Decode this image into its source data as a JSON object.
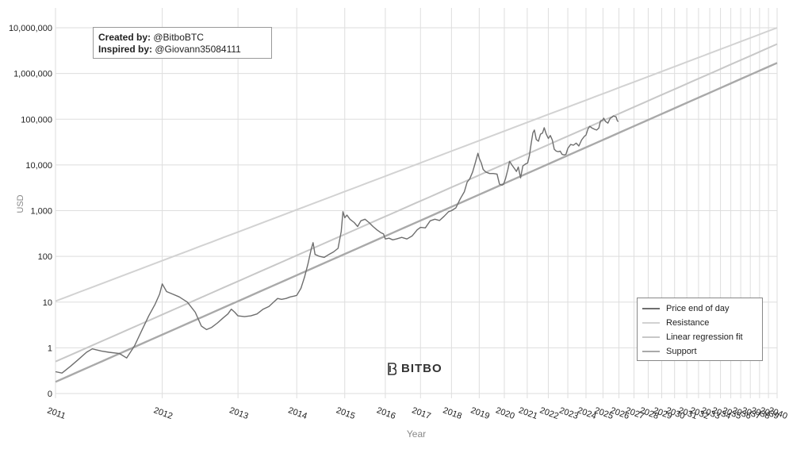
{
  "credit": {
    "created_label": "Created by:",
    "created_value": "@BitboBTC",
    "inspired_label": "Inspired by:",
    "inspired_value": "@Giovann35084111"
  },
  "brand": {
    "name": "BITBO",
    "icon": "bitbo-logo-icon"
  },
  "colors": {
    "price": "#6e6e6e",
    "resistance": "#d2d2d2",
    "regression": "#c8c8c8",
    "support": "#a9a9a9",
    "grid": "#dedede"
  },
  "chart_data": {
    "type": "line",
    "title": "",
    "xlabel": "Year",
    "ylabel": "USD",
    "yscale": "log",
    "grid": true,
    "legend_position": "bottom-right",
    "y_ticks": [
      "0",
      "1",
      "10",
      "100",
      "1,000",
      "10,000",
      "100,000",
      "1,000,000",
      "10,000,000"
    ],
    "x_ticks": [
      "2011",
      "2012",
      "2013",
      "2014",
      "2015",
      "2016",
      "2017",
      "2018",
      "2019",
      "2020",
      "2021",
      "2022",
      "2023",
      "2024",
      "2025",
      "2026",
      "2027",
      "2028",
      "2029",
      "2030",
      "2031",
      "2032",
      "2033",
      "2034",
      "2035",
      "2036",
      "2037",
      "2038",
      "2039",
      "2040"
    ],
    "legend": [
      "Price end of day",
      "Resistance",
      "Linear regression fit",
      "Support"
    ],
    "series": [
      {
        "name": "Price end of day",
        "points": [
          [
            2011.0,
            0.3
          ],
          [
            2011.05,
            0.28
          ],
          [
            2011.12,
            0.4
          ],
          [
            2011.18,
            0.55
          ],
          [
            2011.25,
            0.8
          ],
          [
            2011.3,
            0.95
          ],
          [
            2011.38,
            0.85
          ],
          [
            2011.45,
            0.8
          ],
          [
            2011.55,
            0.75
          ],
          [
            2011.62,
            0.6
          ],
          [
            2011.7,
            1.1
          ],
          [
            2011.78,
            2.5
          ],
          [
            2011.85,
            5
          ],
          [
            2011.92,
            9
          ],
          [
            2011.97,
            15
          ],
          [
            2012.0,
            25
          ],
          [
            2012.05,
            17
          ],
          [
            2012.12,
            15
          ],
          [
            2012.2,
            13
          ],
          [
            2012.3,
            10
          ],
          [
            2012.4,
            6
          ],
          [
            2012.48,
            3
          ],
          [
            2012.55,
            2.5
          ],
          [
            2012.62,
            2.8
          ],
          [
            2012.7,
            3.5
          ],
          [
            2012.78,
            4.5
          ],
          [
            2012.85,
            5.5
          ],
          [
            2012.9,
            7
          ],
          [
            2012.95,
            6
          ],
          [
            2013.0,
            5
          ],
          [
            2013.1,
            4.8
          ],
          [
            2013.2,
            5
          ],
          [
            2013.3,
            5.5
          ],
          [
            2013.4,
            7
          ],
          [
            2013.5,
            8
          ],
          [
            2013.58,
            10
          ],
          [
            2013.65,
            12
          ],
          [
            2013.72,
            11.5
          ],
          [
            2013.8,
            12
          ],
          [
            2013.88,
            13
          ],
          [
            2013.95,
            13.5
          ],
          [
            2014.0,
            14
          ],
          [
            2014.08,
            20
          ],
          [
            2014.15,
            35
          ],
          [
            2014.22,
            70
          ],
          [
            2014.28,
            140
          ],
          [
            2014.32,
            200
          ],
          [
            2014.36,
            110
          ],
          [
            2014.45,
            100
          ],
          [
            2014.55,
            95
          ],
          [
            2014.65,
            110
          ],
          [
            2014.75,
            125
          ],
          [
            2014.85,
            150
          ],
          [
            2014.92,
            350
          ],
          [
            2014.96,
            950
          ],
          [
            2015.0,
            700
          ],
          [
            2015.05,
            800
          ],
          [
            2015.12,
            650
          ],
          [
            2015.22,
            550
          ],
          [
            2015.3,
            450
          ],
          [
            2015.38,
            600
          ],
          [
            2015.48,
            650
          ],
          [
            2015.58,
            550
          ],
          [
            2015.68,
            450
          ],
          [
            2015.78,
            380
          ],
          [
            2015.88,
            330
          ],
          [
            2015.95,
            310
          ],
          [
            2016.0,
            240
          ],
          [
            2016.1,
            250
          ],
          [
            2016.2,
            230
          ],
          [
            2016.3,
            240
          ],
          [
            2016.45,
            260
          ],
          [
            2016.6,
            240
          ],
          [
            2016.75,
            280
          ],
          [
            2016.9,
            380
          ],
          [
            2017.0,
            430
          ],
          [
            2017.15,
            420
          ],
          [
            2017.3,
            600
          ],
          [
            2017.45,
            650
          ],
          [
            2017.6,
            610
          ],
          [
            2017.75,
            750
          ],
          [
            2017.9,
            950
          ],
          [
            2018.0,
            1000
          ],
          [
            2018.15,
            1150
          ],
          [
            2018.3,
            1800
          ],
          [
            2018.45,
            2600
          ],
          [
            2018.55,
            4200
          ],
          [
            2018.65,
            5000
          ],
          [
            2018.75,
            7000
          ],
          [
            2018.85,
            11000
          ],
          [
            2018.95,
            18000
          ],
          [
            2019.0,
            14000
          ],
          [
            2019.08,
            11000
          ],
          [
            2019.15,
            8000
          ],
          [
            2019.25,
            7000
          ],
          [
            2019.4,
            6500
          ],
          [
            2019.55,
            6500
          ],
          [
            2019.7,
            6300
          ],
          [
            2019.8,
            3800
          ],
          [
            2019.9,
            3600
          ],
          [
            2019.97,
            3800
          ],
          [
            2020.05,
            5000
          ],
          [
            2020.15,
            8000
          ],
          [
            2020.22,
            12000
          ],
          [
            2020.32,
            10000
          ],
          [
            2020.42,
            8500
          ],
          [
            2020.52,
            7200
          ],
          [
            2020.6,
            9000
          ],
          [
            2020.7,
            5200
          ],
          [
            2020.8,
            9500
          ],
          [
            2020.92,
            10500
          ],
          [
            2021.02,
            11000
          ],
          [
            2021.1,
            16000
          ],
          [
            2021.18,
            29000
          ],
          [
            2021.26,
            50000
          ],
          [
            2021.33,
            58000
          ],
          [
            2021.42,
            36000
          ],
          [
            2021.52,
            33000
          ],
          [
            2021.62,
            47000
          ],
          [
            2021.72,
            50000
          ],
          [
            2021.8,
            65000
          ],
          [
            2021.9,
            47000
          ],
          [
            2022.0,
            38000
          ],
          [
            2022.1,
            44000
          ],
          [
            2022.2,
            35000
          ],
          [
            2022.3,
            22000
          ],
          [
            2022.4,
            20000
          ],
          [
            2022.5,
            19500
          ],
          [
            2022.6,
            20000
          ],
          [
            2022.7,
            17000
          ],
          [
            2022.8,
            16500
          ],
          [
            2022.9,
            17000
          ],
          [
            2023.0,
            23000
          ],
          [
            2023.15,
            28000
          ],
          [
            2023.3,
            27000
          ],
          [
            2023.45,
            30000
          ],
          [
            2023.6,
            26000
          ],
          [
            2023.75,
            35000
          ],
          [
            2023.9,
            42000
          ],
          [
            2024.0,
            45000
          ],
          [
            2024.12,
            62000
          ],
          [
            2024.22,
            70000
          ],
          [
            2024.35,
            64000
          ],
          [
            2024.5,
            60000
          ],
          [
            2024.62,
            58000
          ],
          [
            2024.75,
            64000
          ],
          [
            2024.85,
            92000
          ],
          [
            2024.97,
            95000
          ],
          [
            2025.05,
            105000
          ],
          [
            2025.15,
            90000
          ],
          [
            2025.3,
            82000
          ],
          [
            2025.45,
            105000
          ],
          [
            2025.55,
            110000
          ],
          [
            2025.65,
            118000
          ],
          [
            2025.75,
            115000
          ],
          [
            2025.82,
            112000
          ],
          [
            2025.88,
            95000
          ],
          [
            2025.95,
            88000
          ]
        ]
      },
      {
        "name": "Resistance",
        "points": [
          [
            2011.0,
            10.5
          ],
          [
            2040.0,
            10000000
          ]
        ]
      },
      {
        "name": "Linear regression fit",
        "points": [
          [
            2011.0,
            0.5
          ],
          [
            2040.0,
            4400000
          ]
        ]
      },
      {
        "name": "Support",
        "points": [
          [
            2011.0,
            0.18
          ],
          [
            2040.0,
            1700000
          ]
        ]
      }
    ]
  }
}
